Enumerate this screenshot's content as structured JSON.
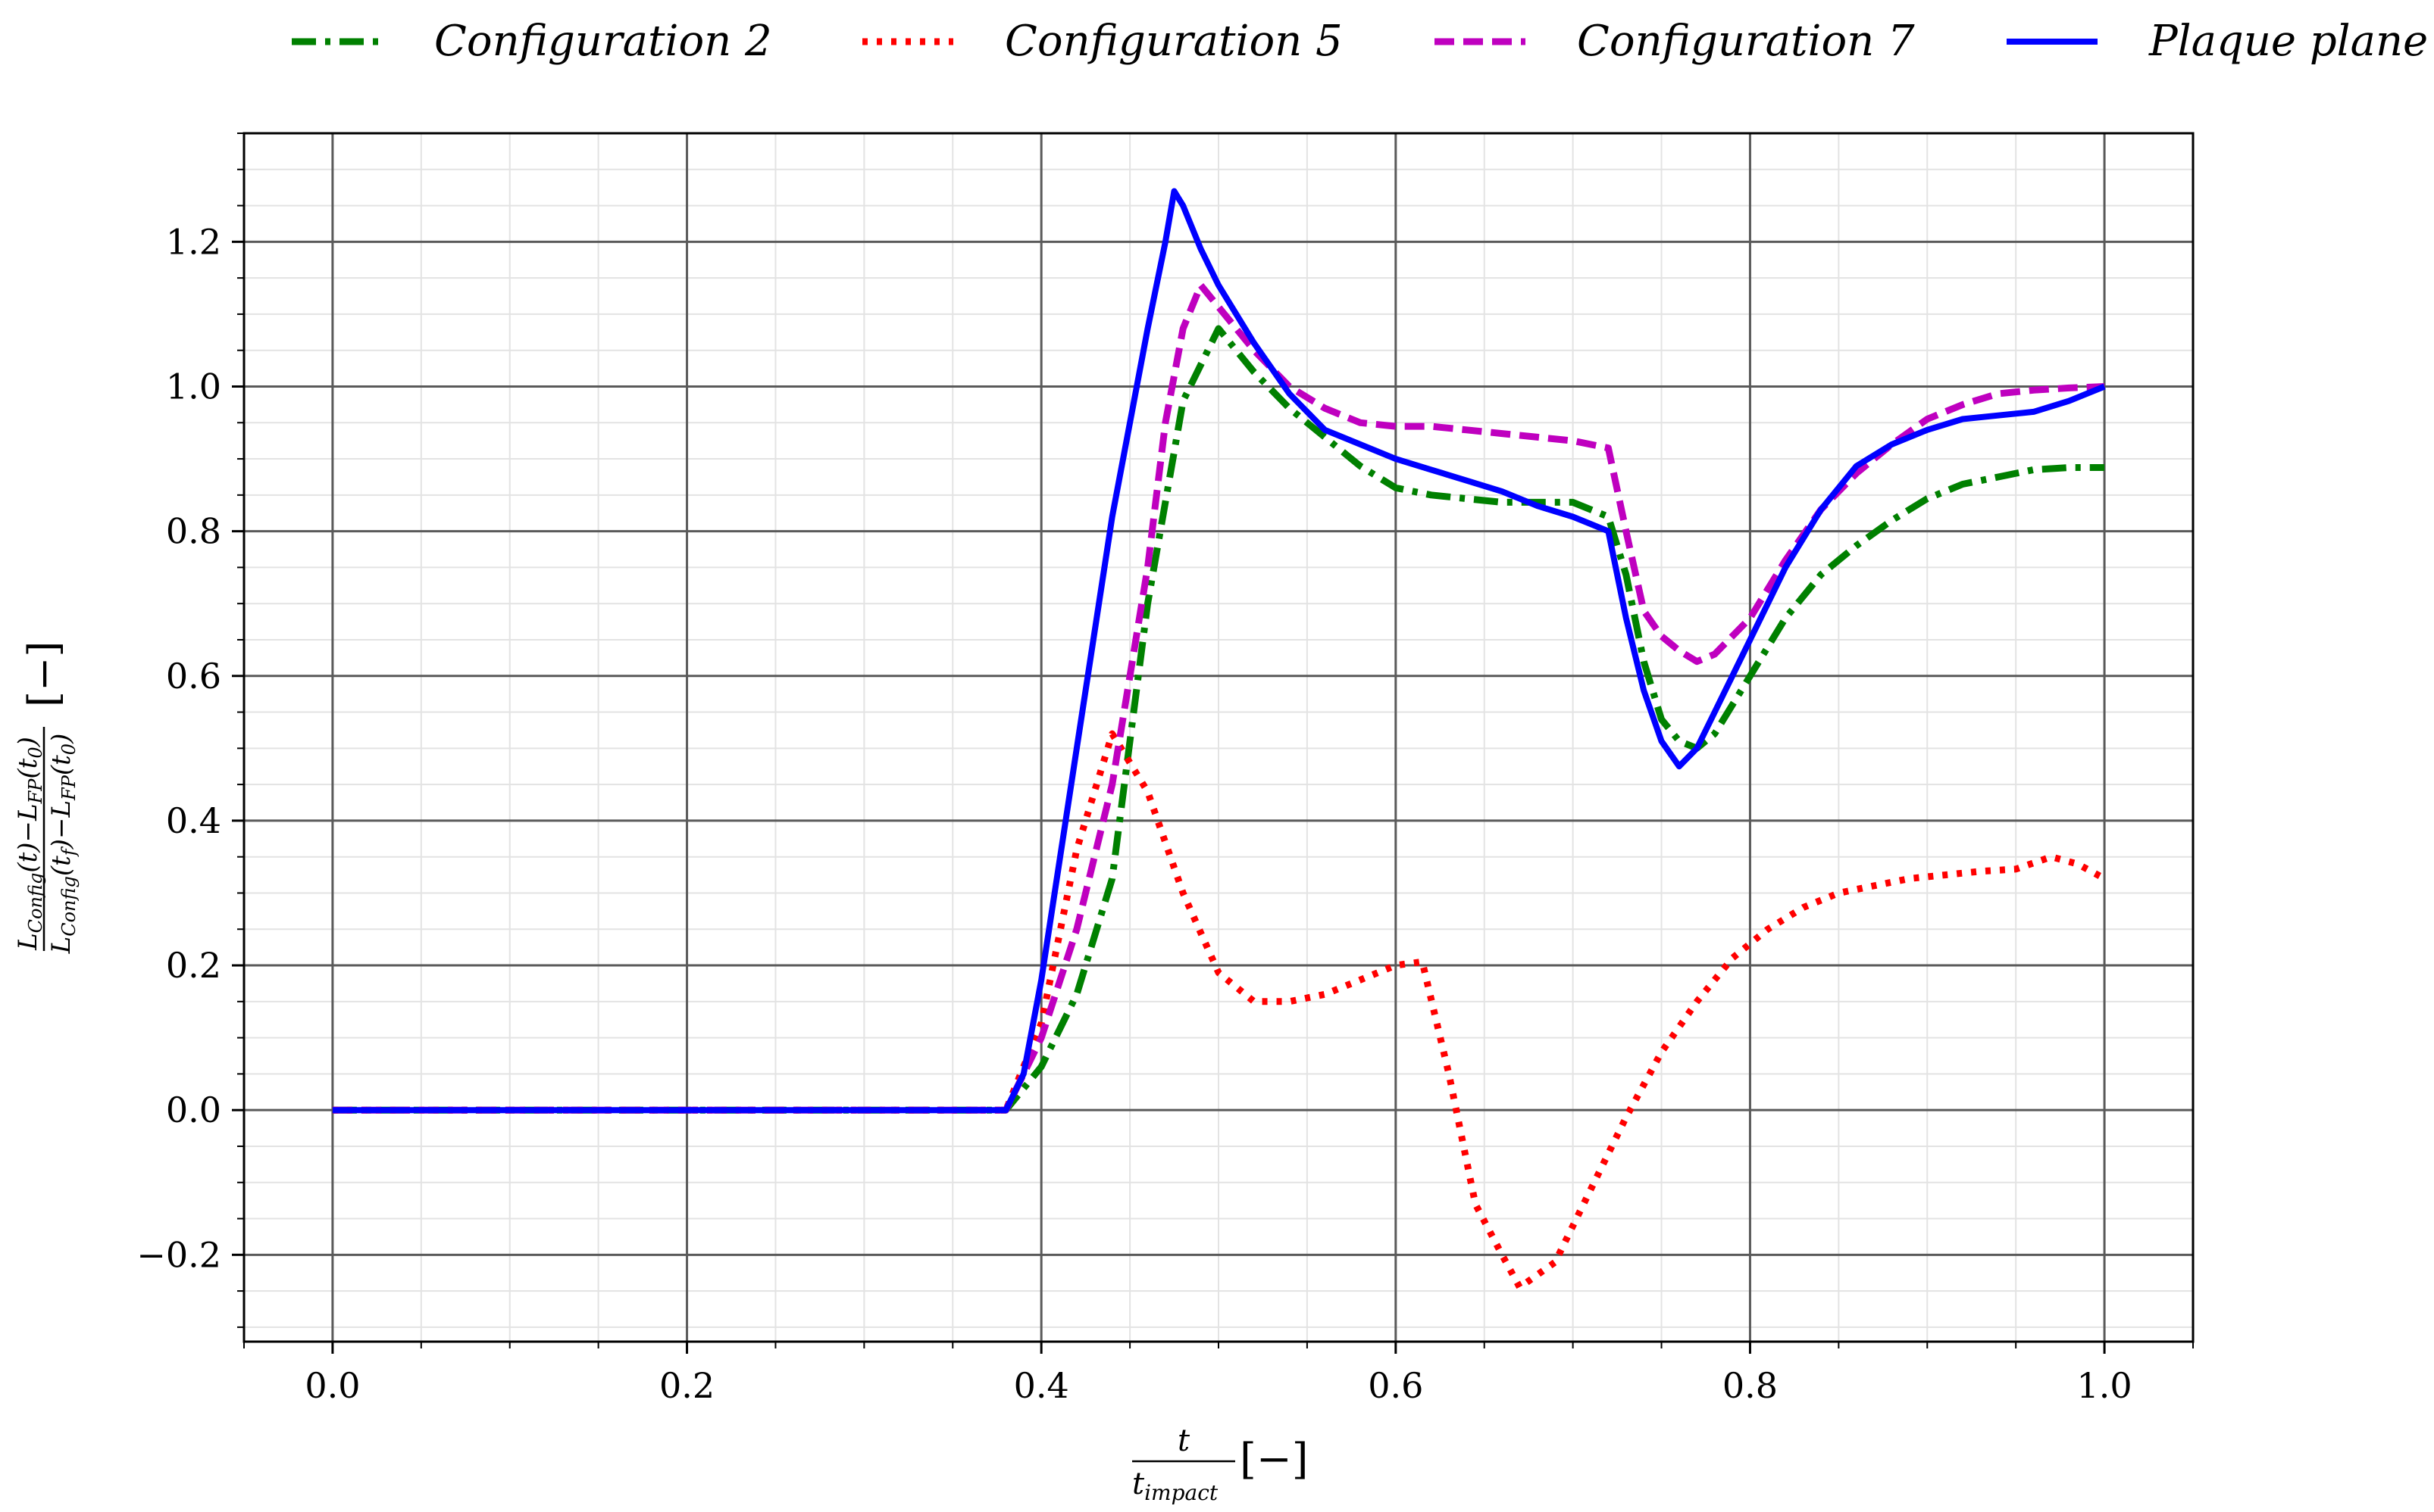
{
  "chart_data": {
    "type": "line",
    "xlim": [
      -0.05,
      1.05
    ],
    "ylim": [
      -0.32,
      1.35
    ],
    "x_major_ticks": [
      0.0,
      0.2,
      0.4,
      0.6,
      0.8,
      1.0
    ],
    "x_tick_labels": [
      "0.0",
      "0.2",
      "0.4",
      "0.6",
      "0.8",
      "1.0"
    ],
    "y_major_ticks": [
      -0.2,
      0.0,
      0.2,
      0.4,
      0.6,
      0.8,
      1.0,
      1.2
    ],
    "y_tick_labels": [
      "−0.2",
      "0.0",
      "0.2",
      "0.4",
      "0.6",
      "0.8",
      "1.0",
      "1.2"
    ],
    "x_minor_step": 0.05,
    "y_minor_step": 0.05,
    "grid": true,
    "legend_position": "top",
    "xlabel": {
      "num": "t",
      "den": "t",
      "den_sub": "impact",
      "unit": "[−]"
    },
    "ylabel": {
      "num": "L_Config(t)−L_FP(t0)",
      "den": "L_Config(tf)−L_FP(t0)",
      "unit": "[−]",
      "parts": {
        "L": "L",
        "config": "Config",
        "fp": "FP",
        "t": "(t)",
        "minus": "−",
        "t0_open": "(t",
        "zero": "0",
        "close": ")",
        "f": "f"
      }
    },
    "series": [
      {
        "name": "Configuration 2",
        "color": "#008000",
        "style": "dashdot",
        "x": [
          0.0,
          0.05,
          0.1,
          0.15,
          0.2,
          0.25,
          0.3,
          0.35,
          0.38,
          0.4,
          0.42,
          0.44,
          0.46,
          0.48,
          0.5,
          0.52,
          0.54,
          0.56,
          0.58,
          0.6,
          0.62,
          0.64,
          0.66,
          0.68,
          0.7,
          0.72,
          0.73,
          0.74,
          0.75,
          0.76,
          0.77,
          0.78,
          0.8,
          0.82,
          0.84,
          0.86,
          0.88,
          0.9,
          0.92,
          0.94,
          0.96,
          0.98,
          1.0
        ],
        "y": [
          0.0,
          0.0,
          0.0,
          0.0,
          0.0,
          0.0,
          0.0,
          0.0,
          0.0,
          0.06,
          0.16,
          0.32,
          0.7,
          0.98,
          1.08,
          1.02,
          0.97,
          0.93,
          0.89,
          0.86,
          0.85,
          0.845,
          0.84,
          0.84,
          0.84,
          0.82,
          0.74,
          0.62,
          0.54,
          0.51,
          0.5,
          0.52,
          0.6,
          0.68,
          0.74,
          0.78,
          0.815,
          0.845,
          0.865,
          0.875,
          0.885,
          0.888,
          0.888
        ]
      },
      {
        "name": "Configuration 5",
        "color": "#ff0000",
        "style": "dotted",
        "x": [
          0.0,
          0.05,
          0.1,
          0.15,
          0.2,
          0.25,
          0.3,
          0.35,
          0.38,
          0.4,
          0.42,
          0.44,
          0.46,
          0.48,
          0.5,
          0.52,
          0.54,
          0.56,
          0.58,
          0.6,
          0.615,
          0.63,
          0.645,
          0.66,
          0.67,
          0.69,
          0.71,
          0.73,
          0.75,
          0.77,
          0.79,
          0.81,
          0.83,
          0.85,
          0.87,
          0.89,
          0.91,
          0.93,
          0.95,
          0.97,
          0.985,
          1.0
        ],
        "y": [
          0.0,
          0.0,
          0.0,
          0.0,
          0.0,
          0.0,
          0.0,
          0.0,
          0.0,
          0.12,
          0.36,
          0.52,
          0.44,
          0.3,
          0.19,
          0.15,
          0.15,
          0.16,
          0.18,
          0.2,
          0.205,
          0.05,
          -0.13,
          -0.2,
          -0.245,
          -0.21,
          -0.11,
          -0.01,
          0.08,
          0.15,
          0.21,
          0.25,
          0.28,
          0.3,
          0.31,
          0.32,
          0.325,
          0.33,
          0.333,
          0.35,
          0.34,
          0.32
        ]
      },
      {
        "name": "Configuration 7",
        "color": "#bf00bf",
        "style": "dashed",
        "x": [
          0.0,
          0.05,
          0.1,
          0.15,
          0.2,
          0.25,
          0.3,
          0.35,
          0.38,
          0.4,
          0.42,
          0.44,
          0.46,
          0.47,
          0.48,
          0.49,
          0.5,
          0.52,
          0.54,
          0.56,
          0.58,
          0.6,
          0.62,
          0.64,
          0.66,
          0.68,
          0.7,
          0.72,
          0.73,
          0.74,
          0.75,
          0.76,
          0.77,
          0.78,
          0.8,
          0.82,
          0.84,
          0.86,
          0.88,
          0.9,
          0.92,
          0.94,
          0.96,
          0.98,
          1.0
        ],
        "y": [
          0.0,
          0.0,
          0.0,
          0.0,
          0.0,
          0.0,
          0.0,
          0.0,
          0.0,
          0.1,
          0.25,
          0.45,
          0.75,
          0.95,
          1.08,
          1.14,
          1.11,
          1.05,
          1.0,
          0.97,
          0.95,
          0.945,
          0.945,
          0.94,
          0.935,
          0.93,
          0.925,
          0.915,
          0.8,
          0.69,
          0.655,
          0.635,
          0.62,
          0.63,
          0.68,
          0.76,
          0.83,
          0.88,
          0.92,
          0.955,
          0.975,
          0.99,
          0.995,
          0.998,
          1.0
        ]
      },
      {
        "name": "Plaque plane",
        "color": "#0000ff",
        "style": "solid",
        "x": [
          0.0,
          0.05,
          0.1,
          0.15,
          0.2,
          0.25,
          0.3,
          0.35,
          0.38,
          0.39,
          0.4,
          0.42,
          0.44,
          0.46,
          0.47,
          0.475,
          0.48,
          0.49,
          0.5,
          0.52,
          0.54,
          0.56,
          0.58,
          0.6,
          0.62,
          0.64,
          0.66,
          0.68,
          0.7,
          0.72,
          0.73,
          0.74,
          0.75,
          0.76,
          0.77,
          0.78,
          0.8,
          0.82,
          0.84,
          0.86,
          0.88,
          0.9,
          0.92,
          0.94,
          0.96,
          0.98,
          1.0
        ],
        "y": [
          0.0,
          0.0,
          0.0,
          0.0,
          0.0,
          0.0,
          0.0,
          0.0,
          0.0,
          0.05,
          0.18,
          0.5,
          0.82,
          1.08,
          1.2,
          1.27,
          1.25,
          1.19,
          1.14,
          1.06,
          0.99,
          0.94,
          0.92,
          0.9,
          0.885,
          0.87,
          0.855,
          0.835,
          0.82,
          0.8,
          0.68,
          0.58,
          0.51,
          0.475,
          0.5,
          0.55,
          0.65,
          0.75,
          0.83,
          0.89,
          0.92,
          0.94,
          0.955,
          0.96,
          0.965,
          0.98,
          1.0
        ]
      }
    ]
  }
}
